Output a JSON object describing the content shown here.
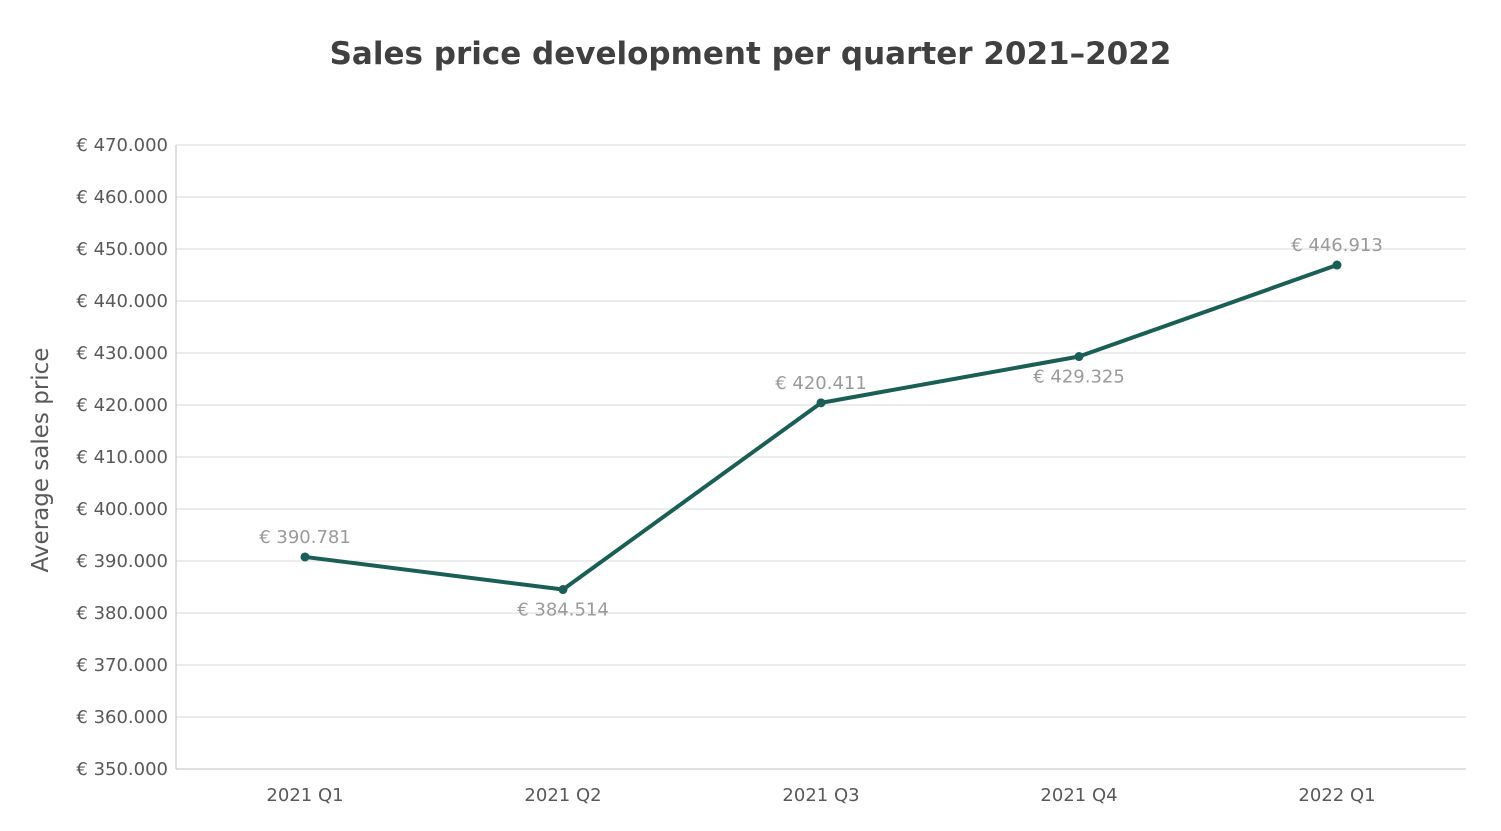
{
  "chart_data": {
    "type": "line",
    "title": "Sales price development per quarter 2021–2022",
    "xlabel": "",
    "ylabel": "Average sales price",
    "categories": [
      "2021 Q1",
      "2021 Q2",
      "2021 Q3",
      "2021 Q4",
      "2022 Q1"
    ],
    "series": [
      {
        "name": "Average sales price",
        "values": [
          390781,
          384514,
          420411,
          429325,
          446913
        ],
        "data_labels": [
          "€ 390.781",
          "€ 384.514",
          "€ 420.411",
          "€ 429.325",
          "€ 446.913"
        ],
        "color": "#1a5e55"
      }
    ],
    "ylim": [
      350000,
      470000
    ],
    "y_ticks": [
      350000,
      360000,
      370000,
      380000,
      390000,
      400000,
      410000,
      420000,
      430000,
      440000,
      450000,
      460000,
      470000
    ],
    "y_tick_labels": [
      "€ 350.000",
      "€ 360.000",
      "€ 370.000",
      "€ 380.000",
      "€ 390.000",
      "€ 400.000",
      "€ 410.000",
      "€ 420.000",
      "€ 430.000",
      "€ 440.000",
      "€ 450.000",
      "€ 460.000",
      "€ 470.000"
    ],
    "grid": true,
    "legend": "none",
    "colors": {
      "line": "#1a5e55",
      "grid": "#d9d9d9",
      "axis": "#bfbfbf",
      "data_label": "#9a9a9a",
      "tick": "#595959"
    }
  }
}
